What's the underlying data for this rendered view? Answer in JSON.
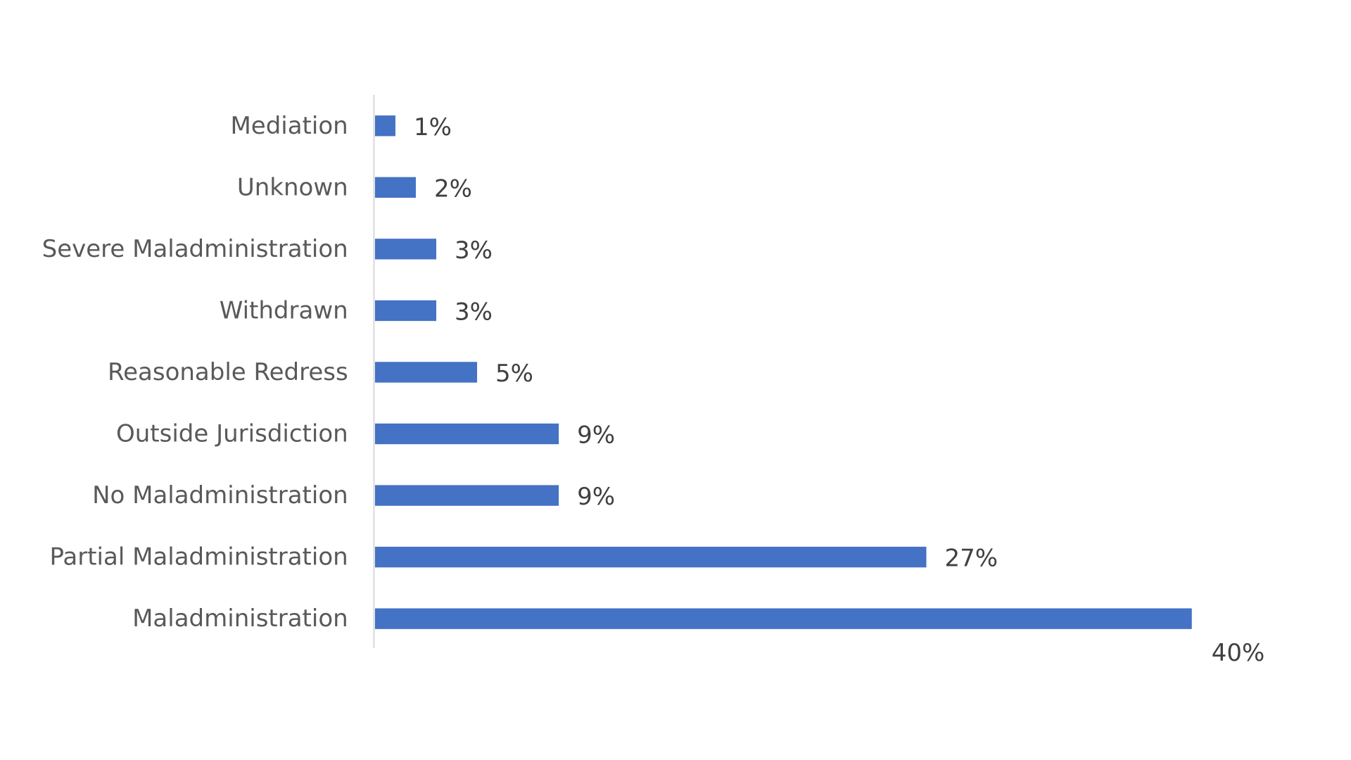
{
  "chart_data": {
    "type": "bar",
    "orientation": "horizontal",
    "categories": [
      "Mediation",
      "Unknown",
      "Severe Maladministration",
      "Withdrawn",
      "Reasonable Redress",
      "Outside Jurisdiction",
      "No Maladministration",
      "Partial Maladministration",
      "Maladministration"
    ],
    "values": [
      1,
      2,
      3,
      3,
      5,
      9,
      9,
      27,
      40
    ],
    "data_labels": [
      "1%",
      "2%",
      "3%",
      "3%",
      "5%",
      "9%",
      "9%",
      "27%",
      "40%"
    ],
    "bar_color": "#4472C4",
    "axis_color": "#D9D9D9",
    "title": "",
    "xlabel": "",
    "ylabel": "",
    "gridlines": false,
    "legend": "none"
  }
}
